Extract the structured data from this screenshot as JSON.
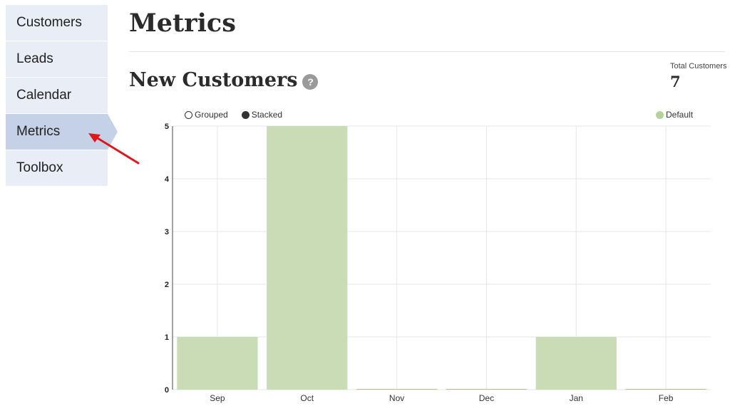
{
  "sidebar": {
    "items": [
      {
        "label": "Customers"
      },
      {
        "label": "Leads"
      },
      {
        "label": "Calendar"
      },
      {
        "label": "Metrics"
      },
      {
        "label": "Toolbox"
      }
    ]
  },
  "page": {
    "title": "Metrics"
  },
  "section": {
    "title": "New Customers",
    "help_icon": "?"
  },
  "stat": {
    "label": "Total Customers",
    "value": "7"
  },
  "controls": {
    "grouped_label": "Grouped",
    "stacked_label": "Stacked"
  },
  "legend": {
    "label": "Default",
    "color": "#b5d29a"
  },
  "colors": {
    "bar": "#cadcb6",
    "bar_baseline": "#c7b98a",
    "grid": "#e6e6e6",
    "annotation": "#e0161b",
    "nav_bg": "#e8edf6",
    "nav_active_bg": "#c5d1e6"
  },
  "chart_data": {
    "type": "bar",
    "categories": [
      "Sep",
      "Oct",
      "Nov",
      "Dec",
      "Jan",
      "Feb"
    ],
    "series": [
      {
        "name": "Default",
        "values": [
          1,
          5,
          0,
          0,
          1,
          0
        ]
      }
    ],
    "yticks": [
      0,
      1,
      2,
      3,
      4,
      5
    ],
    "ylim": [
      0,
      5
    ],
    "grid": true,
    "legend_position": "top-right"
  }
}
